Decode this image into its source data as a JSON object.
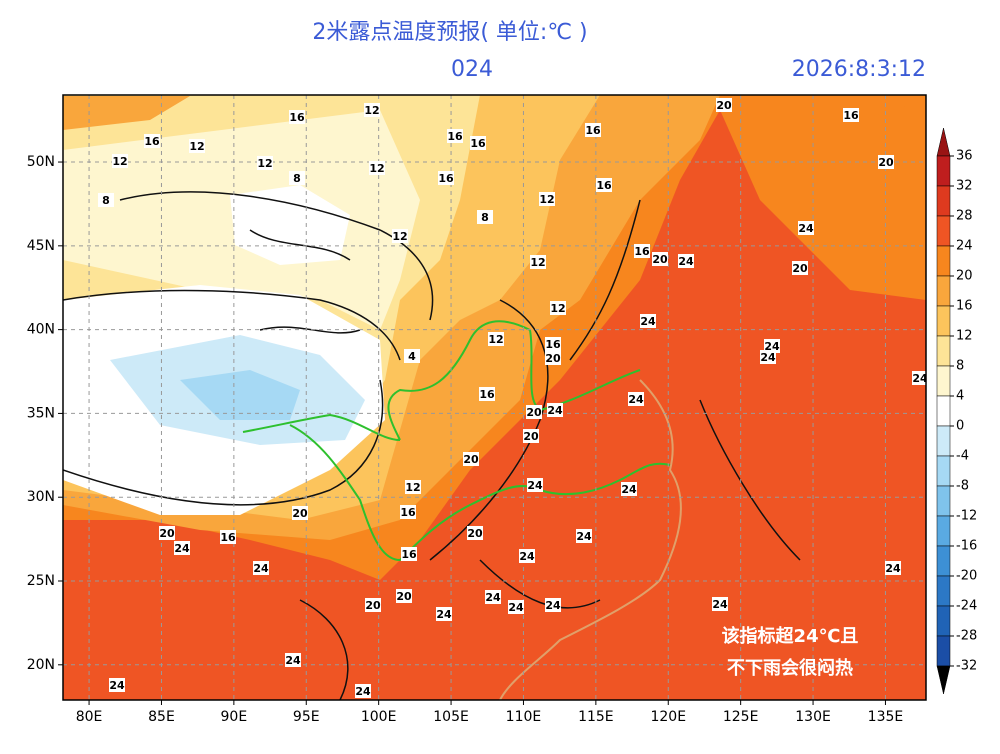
{
  "header": {
    "title": "2米露点温度预报( 单位:℃ )",
    "lead": "024",
    "time": "2026:8:3:12"
  },
  "map": {
    "xlim": [
      78.2,
      137.8
    ],
    "ylim": [
      17.9,
      54
    ],
    "xticks": [
      {
        "value": 80,
        "label": "80E"
      },
      {
        "value": 85,
        "label": "85E"
      },
      {
        "value": 90,
        "label": "90E"
      },
      {
        "value": 95,
        "label": "95E"
      },
      {
        "value": 100,
        "label": "100E"
      },
      {
        "value": 105,
        "label": "105E"
      },
      {
        "value": 110,
        "label": "110E"
      },
      {
        "value": 115,
        "label": "115E"
      },
      {
        "value": 120,
        "label": "120E"
      },
      {
        "value": 125,
        "label": "125E"
      },
      {
        "value": 130,
        "label": "130E"
      },
      {
        "value": 135,
        "label": "135E"
      }
    ],
    "yticks": [
      {
        "value": 50,
        "label": "50N"
      },
      {
        "value": 45,
        "label": "45N"
      },
      {
        "value": 40,
        "label": "40N"
      },
      {
        "value": 35,
        "label": "35N"
      },
      {
        "value": 30,
        "label": "30N"
      },
      {
        "value": 25,
        "label": "25N"
      },
      {
        "value": 20,
        "label": "20N"
      }
    ],
    "grid": true,
    "contour_labels": [
      12,
      16,
      16,
      12,
      12,
      12,
      12,
      16,
      16,
      16,
      16,
      8,
      12,
      16,
      8,
      8,
      12,
      16,
      20,
      24,
      24,
      20,
      16,
      20,
      20,
      12,
      12,
      24,
      12,
      16,
      20,
      24,
      24,
      24,
      16,
      20,
      24,
      20,
      20,
      24,
      24,
      12,
      16,
      20,
      20,
      24,
      20,
      24,
      16,
      16,
      24,
      24,
      24,
      20,
      20,
      24,
      24,
      24,
      24,
      24,
      24,
      24,
      24,
      24,
      4
    ],
    "annotation": [
      "该指标超24℃且",
      "不下雨会很闷热"
    ]
  },
  "colorbar": {
    "levels": [
      36,
      32,
      28,
      24,
      20,
      16,
      12,
      8,
      4,
      0,
      -4,
      -8,
      -12,
      -16,
      -20,
      -24,
      -28,
      -32
    ],
    "colors": [
      "#991414",
      "#bf1e1e",
      "#de3a1f",
      "#ef5524",
      "#f7861e",
      "#f9a63c",
      "#fcc45c",
      "#fde497",
      "#fef6cf",
      "#ffffff",
      "#cdeaf8",
      "#a6d9f4",
      "#7fc3ec",
      "#5aaae2",
      "#3d90d5",
      "#2c78c6",
      "#2063b6",
      "#1b4ea6"
    ]
  }
}
